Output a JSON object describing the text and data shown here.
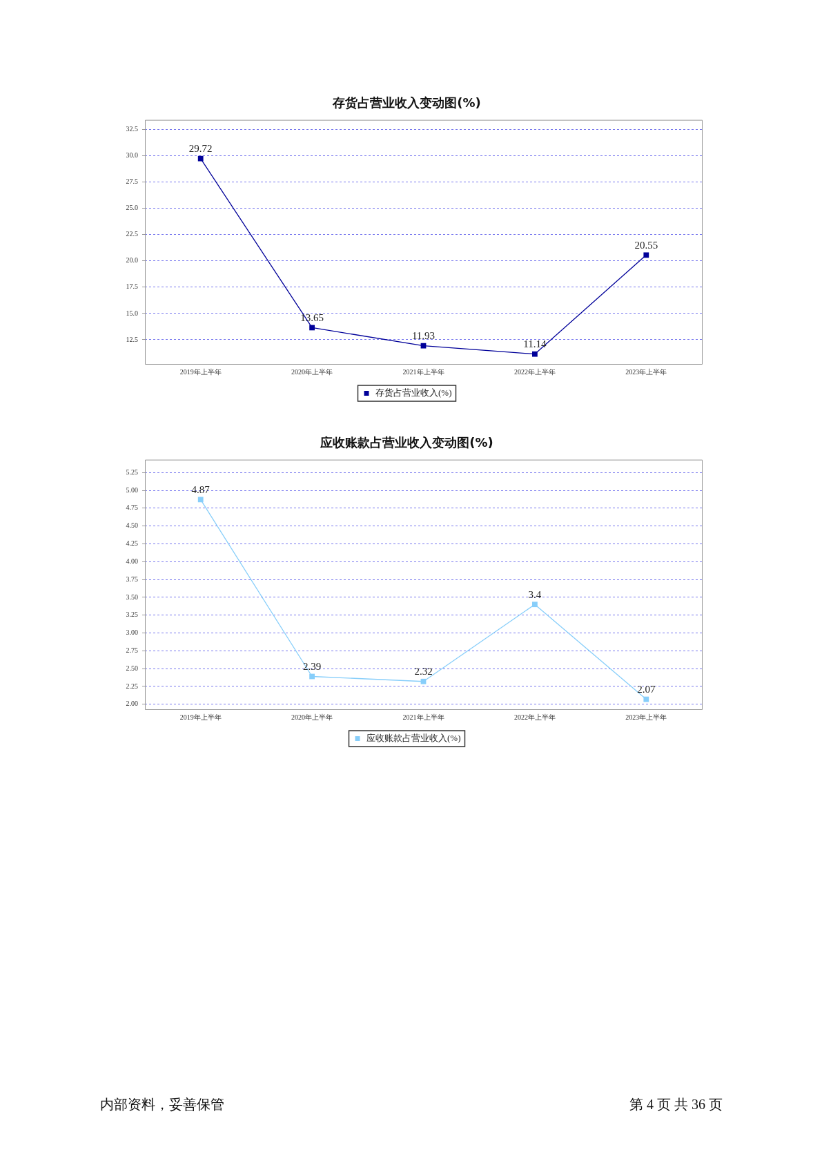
{
  "chart_data": [
    {
      "type": "line",
      "title": "存货占营业收入变动图(%)",
      "categories": [
        "2019年上半年",
        "2020年上半年",
        "2021年上半年",
        "2022年上半年",
        "2023年上半年"
      ],
      "series": [
        {
          "name": "存货占营业收入(%)",
          "color": "#000099",
          "values": [
            29.72,
            13.65,
            11.93,
            11.14,
            20.55
          ]
        }
      ],
      "ylim": [
        10.2,
        33.4
      ],
      "yticks": [
        12.5,
        {
          "value": 15,
          "label": "15.0"
        },
        17.5,
        {
          "value": 20,
          "label": "20.0"
        },
        22.5,
        {
          "value": 25,
          "label": "25.0"
        },
        27.5,
        {
          "value": 30,
          "label": "30.0"
        },
        32.5
      ],
      "grid": "y",
      "legend": "bottom",
      "marker": "square",
      "line_style": "solid",
      "data_labels": true
    },
    {
      "type": "line",
      "title": "应收账款占营业收入变动图(%)",
      "categories": [
        "2019年上半年",
        "2020年上半年",
        "2021年上半年",
        "2022年上半年",
        "2023年上半年"
      ],
      "series": [
        {
          "name": "应收账款占营业收入(%)",
          "color": "#87cefa",
          "values": [
            4.87,
            2.39,
            2.32,
            3.4,
            2.07
          ]
        }
      ],
      "ylim": [
        1.93,
        5.43
      ],
      "yticks": [
        {
          "value": 2,
          "label": "2.00"
        },
        2.25,
        {
          "value": 2.5,
          "label": "2.50"
        },
        2.75,
        {
          "value": 3,
          "label": "3.00"
        },
        3.25,
        {
          "value": 3.5,
          "label": "3.50"
        },
        3.75,
        {
          "value": 4,
          "label": "4.00"
        },
        4.25,
        {
          "value": 4.5,
          "label": "4.50"
        },
        4.75,
        {
          "value": 5,
          "label": "5.00"
        },
        5.25
      ],
      "grid": "y",
      "legend": "bottom",
      "marker": "square",
      "line_style": "solid",
      "data_labels": true
    },
    {
      "type": "other",
      "annotations": [
        "内部资料，妥善保管",
        "第 4 页 共 36 页"
      ]
    }
  ]
}
